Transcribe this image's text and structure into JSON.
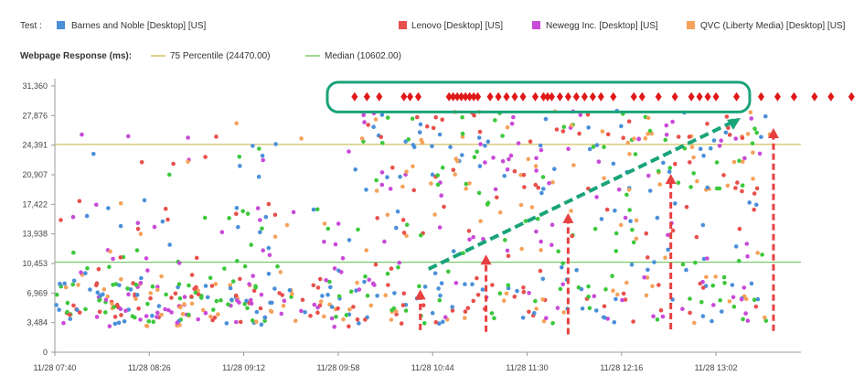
{
  "legend": {
    "test_label": "Test :",
    "metric_label": "Webpage Response (ms):",
    "series": [
      {
        "name": "Barnes and Noble [Desktop] [US]",
        "color": "#4a90d9"
      },
      {
        "name": "Lenovo [Desktop] [US]",
        "color": "#e8504c"
      },
      {
        "name": "Newegg Inc. [Desktop] [US]",
        "color": "#c84ad8"
      },
      {
        "name": "QVC (Liberty Media) [Desktop] [US]",
        "color": "#f5a25a"
      }
    ],
    "lines": [
      {
        "name": "75 Percentile (24470.00)",
        "color": "#c8b43a"
      },
      {
        "name": "Median (10602.00)",
        "color": "#5cbf4a"
      }
    ]
  },
  "chart_data": {
    "type": "scatter",
    "title": "",
    "xlabel": "",
    "ylabel": "Webpage Response (ms)",
    "x_ticks": [
      "11/28 07:40",
      "11/28 08:26",
      "11/28 09:12",
      "11/28 09:58",
      "11/28 10:44",
      "11/28 11:30",
      "11/28 12:16",
      "11/28 13:02"
    ],
    "y_ticks": [
      "0",
      "3,484",
      "6,969",
      "10,453",
      "13,938",
      "17,422",
      "20,907",
      "24,391",
      "27,876",
      "31,360"
    ],
    "ylim": [
      0,
      31360
    ],
    "xlim_minutes": [
      0,
      328
    ],
    "reference_lines": [
      {
        "name": "75 Percentile",
        "value": 24470,
        "color": "#c8b43a"
      },
      {
        "name": "Median",
        "value": 10602,
        "color": "#5cbf4a"
      }
    ],
    "series": [
      {
        "name": "Barnes and Noble [Desktop] [US]",
        "color": "#4a90d9"
      },
      {
        "name": "Lenovo [Desktop] [US]",
        "color": "#e8504c"
      },
      {
        "name": "Newegg Inc. [Desktop] [US]",
        "color": "#c84ad8"
      },
      {
        "name": "QVC (Liberty Media) [Desktop] [US]",
        "color": "#f5a25a"
      },
      {
        "name": "",
        "color": "#3cc83c"
      }
    ],
    "timeout_markers": {
      "value": 30100,
      "minutes": [
        6,
        12,
        18,
        30,
        33,
        37,
        52,
        54,
        56,
        58,
        60,
        62,
        64,
        66,
        72,
        76,
        80,
        84,
        88,
        94,
        98,
        100,
        102,
        106,
        110,
        114,
        118,
        122,
        126,
        132,
        142,
        146,
        154,
        162,
        170,
        174,
        178,
        182,
        192,
        204,
        212,
        220,
        230,
        238,
        248,
        266
      ]
    },
    "annotations": {
      "highlight_box": {
        "x_min_minutes": 0,
        "x_max_minutes": 265,
        "y_min": 28300,
        "y_max": 31800,
        "color": "#1aa37a"
      },
      "trend_arrow": {
        "from": {
          "minutes": 182,
          "value": 9800
        },
        "to": {
          "minutes": 334,
          "value": 27600
        },
        "color": "#1aa37a"
      },
      "up_arrows": [
        {
          "minutes": 178,
          "from": 2600,
          "to": 7400
        },
        {
          "minutes": 210,
          "from": 2400,
          "to": 11500
        },
        {
          "minutes": 250,
          "from": 2100,
          "to": 16400
        },
        {
          "minutes": 300,
          "from": 2700,
          "to": 21000
        },
        {
          "minutes": 350,
          "from": 2500,
          "to": 26400
        }
      ],
      "color": "#e84040"
    }
  }
}
